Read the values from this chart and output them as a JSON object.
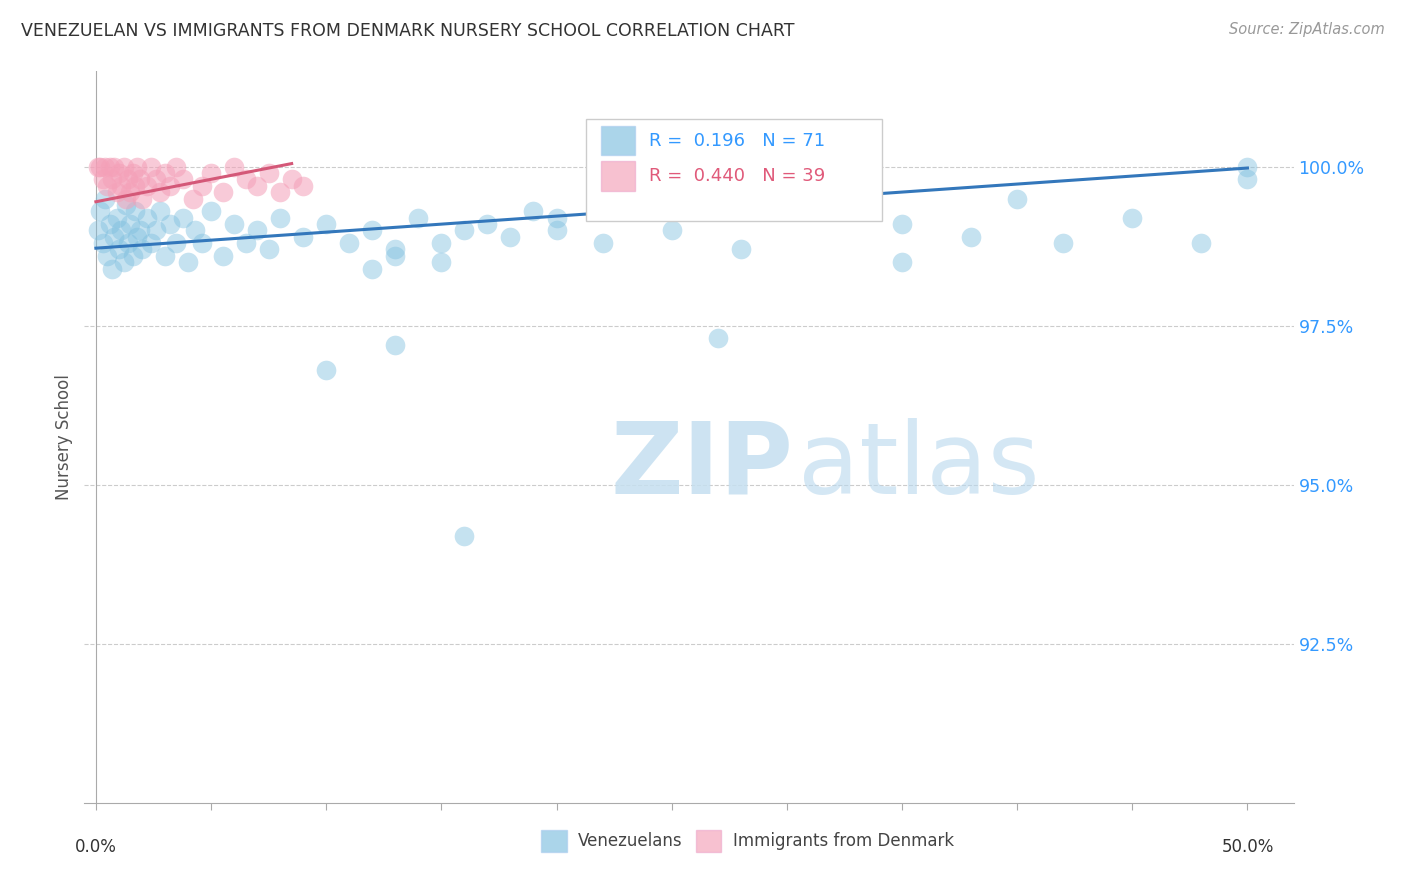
{
  "title": "VENEZUELAN VS IMMIGRANTS FROM DENMARK NURSERY SCHOOL CORRELATION CHART",
  "source": "Source: ZipAtlas.com",
  "ylabel": "Nursery School",
  "ytick_values": [
    92.5,
    95.0,
    97.5,
    100.0
  ],
  "ymin": 90.0,
  "ymax": 101.5,
  "xmin": -0.005,
  "xmax": 0.52,
  "blue_color": "#7fbfdf",
  "pink_color": "#f4a0b8",
  "blue_line_color": "#3377bb",
  "pink_line_color": "#d45878",
  "blue_line_x0": 0.0,
  "blue_line_y0": 98.72,
  "blue_line_x1": 0.5,
  "blue_line_y1": 99.98,
  "pink_line_x0": 0.0,
  "pink_line_y0": 99.45,
  "pink_line_x1": 0.085,
  "pink_line_y1": 100.05,
  "ven_x": [
    0.001,
    0.002,
    0.003,
    0.004,
    0.005,
    0.006,
    0.007,
    0.008,
    0.009,
    0.01,
    0.011,
    0.012,
    0.013,
    0.014,
    0.015,
    0.016,
    0.017,
    0.018,
    0.019,
    0.02,
    0.022,
    0.024,
    0.026,
    0.028,
    0.03,
    0.032,
    0.035,
    0.038,
    0.04,
    0.043,
    0.046,
    0.05,
    0.055,
    0.06,
    0.065,
    0.07,
    0.075,
    0.08,
    0.09,
    0.1,
    0.11,
    0.12,
    0.13,
    0.14,
    0.15,
    0.16,
    0.17,
    0.18,
    0.19,
    0.2,
    0.12,
    0.13,
    0.15,
    0.2,
    0.22,
    0.25,
    0.28,
    0.32,
    0.35,
    0.38,
    0.4,
    0.42,
    0.45,
    0.48,
    0.5,
    0.5,
    0.35,
    0.27,
    0.16,
    0.13,
    0.1
  ],
  "ven_y": [
    99.0,
    99.3,
    98.8,
    99.5,
    98.6,
    99.1,
    98.4,
    98.9,
    99.2,
    98.7,
    99.0,
    98.5,
    99.4,
    98.8,
    99.1,
    98.6,
    99.3,
    98.9,
    99.0,
    98.7,
    99.2,
    98.8,
    99.0,
    99.3,
    98.6,
    99.1,
    98.8,
    99.2,
    98.5,
    99.0,
    98.8,
    99.3,
    98.6,
    99.1,
    98.8,
    99.0,
    98.7,
    99.2,
    98.9,
    99.1,
    98.8,
    99.0,
    98.7,
    99.2,
    98.8,
    99.0,
    99.1,
    98.9,
    99.3,
    99.0,
    98.4,
    98.6,
    98.5,
    99.2,
    98.8,
    99.0,
    98.7,
    99.3,
    99.1,
    98.9,
    99.5,
    98.8,
    99.2,
    98.8,
    100.0,
    99.8,
    98.5,
    97.3,
    94.2,
    97.2,
    96.8
  ],
  "den_x": [
    0.001,
    0.002,
    0.003,
    0.004,
    0.005,
    0.006,
    0.007,
    0.008,
    0.009,
    0.01,
    0.011,
    0.012,
    0.013,
    0.014,
    0.015,
    0.016,
    0.017,
    0.018,
    0.019,
    0.02,
    0.022,
    0.024,
    0.026,
    0.028,
    0.03,
    0.032,
    0.035,
    0.038,
    0.042,
    0.046,
    0.05,
    0.055,
    0.06,
    0.065,
    0.07,
    0.075,
    0.08,
    0.085,
    0.09
  ],
  "den_y": [
    100.0,
    100.0,
    99.8,
    100.0,
    99.7,
    100.0,
    99.8,
    100.0,
    99.6,
    99.9,
    99.7,
    100.0,
    99.5,
    99.8,
    99.6,
    99.9,
    99.7,
    100.0,
    99.8,
    99.5,
    99.7,
    100.0,
    99.8,
    99.6,
    99.9,
    99.7,
    100.0,
    99.8,
    99.5,
    99.7,
    99.9,
    99.6,
    100.0,
    99.8,
    99.7,
    99.9,
    99.6,
    99.8,
    99.7
  ]
}
